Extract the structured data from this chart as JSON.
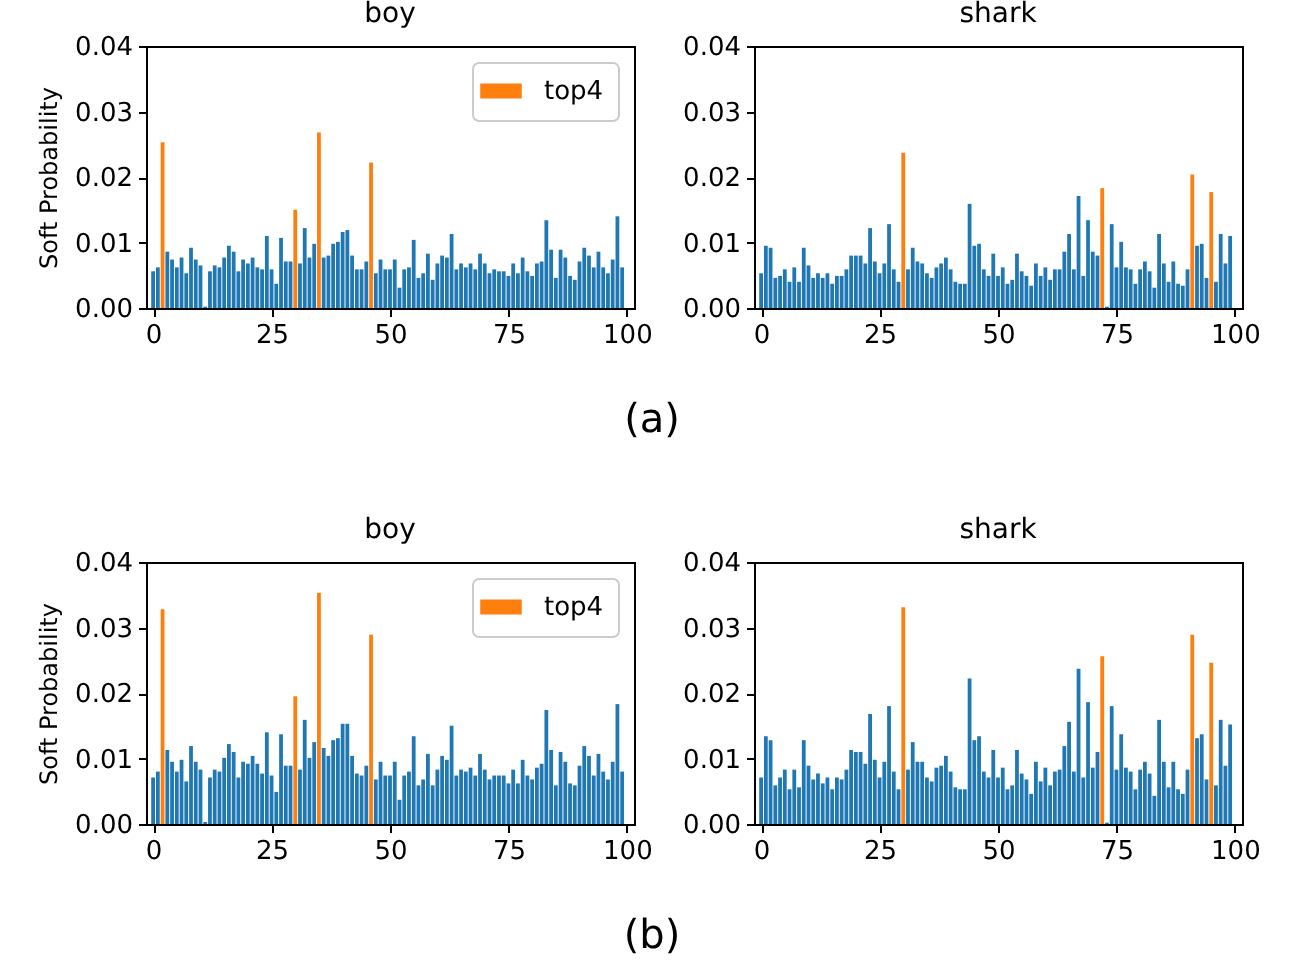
{
  "chart_data": [
    {
      "type": "bar",
      "title": "boy",
      "ylabel": "Soft Probability",
      "legend": "top right",
      "annotations": [
        "(a)"
      ],
      "x": [
        0,
        1,
        2,
        3,
        4,
        5,
        6,
        7,
        8,
        9,
        10,
        11,
        12,
        13,
        14,
        15,
        16,
        17,
        18,
        19,
        20,
        21,
        22,
        23,
        24,
        25,
        26,
        27,
        28,
        29,
        30,
        31,
        32,
        33,
        34,
        35,
        36,
        37,
        38,
        39,
        40,
        41,
        42,
        43,
        44,
        45,
        46,
        47,
        48,
        49,
        50,
        51,
        52,
        53,
        54,
        55,
        56,
        57,
        58,
        59,
        60,
        61,
        62,
        63,
        64,
        65,
        66,
        67,
        68,
        69,
        70,
        71,
        72,
        73,
        74,
        75,
        76,
        77,
        78,
        79,
        80,
        81,
        82,
        83,
        84,
        85,
        86,
        87,
        88,
        89,
        90,
        91,
        92,
        93,
        94,
        95,
        96,
        97,
        98,
        99
      ],
      "xlim": [
        -1.5,
        101.5
      ],
      "xticks": [
        0,
        25,
        50,
        75,
        100
      ],
      "ylim": [
        0,
        0.04
      ],
      "yticks": [
        {
          "value": 0,
          "label": "0.00"
        },
        {
          "value": 0.01,
          "label": "0.01"
        },
        {
          "value": 0.02,
          "label": "0.02"
        },
        {
          "value": 0.03,
          "label": "0.03"
        },
        {
          "value": 0.04,
          "label": "0.04"
        }
      ],
      "series": [
        {
          "color": "#1f77b4",
          "values": [
            0.0056,
            0.0062,
            null,
            0.0086,
            0.0074,
            0.0062,
            0.0077,
            0.0053,
            0.0092,
            0.0074,
            0.0065,
            0.0002,
            0.0056,
            0.0065,
            0.0062,
            0.0077,
            0.0095,
            0.0086,
            0.0056,
            0.0074,
            0.0068,
            0.0077,
            0.0062,
            0.0059,
            0.011,
            0.0059,
            0.0037,
            0.0107,
            0.0071,
            0.0071,
            null,
            0.0068,
            0.0122,
            0.0077,
            0.0098,
            null,
            0.0077,
            0.008,
            0.0098,
            0.0101,
            0.0116,
            0.0119,
            0.008,
            0.0059,
            0.0059,
            0.0071,
            null,
            0.0053,
            0.0074,
            0.0059,
            0.0059,
            0.0074,
            0.0031,
            0.0059,
            0.0062,
            0.0104,
            0.0046,
            0.0053,
            0.0083,
            0.0043,
            0.0068,
            0.008,
            0.0077,
            0.0113,
            0.0059,
            0.0068,
            0.0062,
            0.0068,
            0.0059,
            0.0083,
            0.0068,
            0.0053,
            0.0059,
            0.0056,
            0.0056,
            0.0049,
            0.0068,
            0.0053,
            0.0077,
            0.0056,
            0.0049,
            0.0068,
            0.0071,
            0.0134,
            0.0089,
            0.0046,
            0.0089,
            0.0077,
            0.0049,
            0.0043,
            0.0071,
            0.0092,
            0.008,
            0.0062,
            0.0086,
            0.0062,
            0.0053,
            0.0074,
            0.014,
            0.0062
          ]
        },
        {
          "name": "top4",
          "color": "#ff7f0e",
          "values": [
            null,
            null,
            0.0253,
            null,
            null,
            null,
            null,
            null,
            null,
            null,
            null,
            null,
            null,
            null,
            null,
            null,
            null,
            null,
            null,
            null,
            null,
            null,
            null,
            null,
            null,
            null,
            null,
            null,
            null,
            null,
            0.015,
            null,
            null,
            null,
            null,
            0.0268,
            null,
            null,
            null,
            null,
            null,
            null,
            null,
            null,
            null,
            null,
            0.0222,
            null,
            null,
            null,
            null,
            null,
            null,
            null,
            null,
            null,
            null,
            null,
            null,
            null,
            null,
            null,
            null,
            null,
            null,
            null,
            null,
            null,
            null,
            null,
            null,
            null,
            null,
            null,
            null,
            null,
            null,
            null,
            null,
            null,
            null,
            null,
            null,
            null,
            null,
            null,
            null,
            null,
            null,
            null,
            null,
            null,
            null,
            null,
            null,
            null,
            null,
            null,
            null,
            null
          ]
        }
      ]
    },
    {
      "type": "bar",
      "title": "shark",
      "x": [
        0,
        1,
        2,
        3,
        4,
        5,
        6,
        7,
        8,
        9,
        10,
        11,
        12,
        13,
        14,
        15,
        16,
        17,
        18,
        19,
        20,
        21,
        22,
        23,
        24,
        25,
        26,
        27,
        28,
        29,
        30,
        31,
        32,
        33,
        34,
        35,
        36,
        37,
        38,
        39,
        40,
        41,
        42,
        43,
        44,
        45,
        46,
        47,
        48,
        49,
        50,
        51,
        52,
        53,
        54,
        55,
        56,
        57,
        58,
        59,
        60,
        61,
        62,
        63,
        64,
        65,
        66,
        67,
        68,
        69,
        70,
        71,
        72,
        73,
        74,
        75,
        76,
        77,
        78,
        79,
        80,
        81,
        82,
        83,
        84,
        85,
        86,
        87,
        88,
        89,
        90,
        91,
        92,
        93,
        94,
        95,
        96,
        97,
        98,
        99
      ],
      "xlim": [
        -1.5,
        101.5
      ],
      "xticks": [
        0,
        25,
        50,
        75,
        100
      ],
      "ylim": [
        0,
        0.04
      ],
      "yticks": [
        {
          "value": 0,
          "label": "0.00"
        },
        {
          "value": 0.01,
          "label": "0.01"
        },
        {
          "value": 0.02,
          "label": "0.02"
        },
        {
          "value": 0.03,
          "label": "0.03"
        },
        {
          "value": 0.04,
          "label": "0.04"
        }
      ],
      "series": [
        {
          "color": "#1f77b4",
          "values": [
            0.0053,
            0.0095,
            0.0092,
            0.0046,
            0.0049,
            0.0059,
            0.004,
            0.0062,
            0.004,
            0.0092,
            0.0065,
            0.0046,
            0.0053,
            0.0046,
            0.0053,
            0.0037,
            0.0049,
            0.0049,
            0.0059,
            0.008,
            0.008,
            0.008,
            0.0068,
            0.0122,
            0.0071,
            0.0053,
            0.0068,
            0.0128,
            0.0059,
            0.004,
            null,
            0.0059,
            0.0092,
            0.0071,
            0.0068,
            0.0053,
            0.0046,
            0.0062,
            0.0068,
            0.0077,
            0.0059,
            0.004,
            0.0037,
            0.0037,
            0.0159,
            0.0095,
            0.0098,
            0.0059,
            0.0049,
            0.0083,
            0.0049,
            0.0062,
            0.0037,
            0.0043,
            0.0083,
            0.0056,
            0.0049,
            0.0034,
            0.0068,
            0.0049,
            0.0062,
            0.0043,
            0.0059,
            0.0059,
            0.0086,
            0.0113,
            0.0059,
            0.0171,
            0.0049,
            0.0134,
            0.0086,
            0.008,
            null,
            0.0002,
            0.0128,
            0.0062,
            0.0101,
            0.0062,
            0.0059,
            0.0037,
            0.0059,
            0.0071,
            0.0056,
            0.0031,
            0.0113,
            0.0068,
            0.004,
            0.0071,
            0.0037,
            0.0034,
            0.0059,
            null,
            0.0095,
            0.0098,
            0.0046,
            null,
            0.004,
            0.0113,
            0.0068,
            0.011
          ]
        },
        {
          "color": "#ff7f0e",
          "values": [
            null,
            null,
            null,
            null,
            null,
            null,
            null,
            null,
            null,
            null,
            null,
            null,
            null,
            null,
            null,
            null,
            null,
            null,
            null,
            null,
            null,
            null,
            null,
            null,
            null,
            null,
            null,
            null,
            null,
            null,
            0.0237,
            null,
            null,
            null,
            null,
            null,
            null,
            null,
            null,
            null,
            null,
            null,
            null,
            null,
            null,
            null,
            null,
            null,
            null,
            null,
            null,
            null,
            null,
            null,
            null,
            null,
            null,
            null,
            null,
            null,
            null,
            null,
            null,
            null,
            null,
            null,
            null,
            null,
            null,
            null,
            null,
            null,
            0.0183,
            null,
            null,
            null,
            null,
            null,
            null,
            null,
            null,
            null,
            null,
            null,
            null,
            null,
            null,
            null,
            null,
            null,
            null,
            0.0204,
            null,
            null,
            null,
            0.0177,
            null,
            null,
            null,
            null
          ]
        }
      ]
    },
    {
      "type": "bar",
      "title": "boy",
      "ylabel": "Soft Probability",
      "legend": "top right",
      "annotations": [
        "(b)"
      ],
      "x": [
        0,
        1,
        2,
        3,
        4,
        5,
        6,
        7,
        8,
        9,
        10,
        11,
        12,
        13,
        14,
        15,
        16,
        17,
        18,
        19,
        20,
        21,
        22,
        23,
        24,
        25,
        26,
        27,
        28,
        29,
        30,
        31,
        32,
        33,
        34,
        35,
        36,
        37,
        38,
        39,
        40,
        41,
        42,
        43,
        44,
        45,
        46,
        47,
        48,
        49,
        50,
        51,
        52,
        53,
        54,
        55,
        56,
        57,
        58,
        59,
        60,
        61,
        62,
        63,
        64,
        65,
        66,
        67,
        68,
        69,
        70,
        71,
        72,
        73,
        74,
        75,
        76,
        77,
        78,
        79,
        80,
        81,
        82,
        83,
        84,
        85,
        86,
        87,
        88,
        89,
        90,
        91,
        92,
        93,
        94,
        95,
        96,
        97,
        98,
        99
      ],
      "xlim": [
        -1.5,
        101.5
      ],
      "xticks": [
        0,
        25,
        50,
        75,
        100
      ],
      "ylim": [
        0,
        0.04
      ],
      "yticks": [
        {
          "value": 0,
          "label": "0.00"
        },
        {
          "value": 0.01,
          "label": "0.01"
        },
        {
          "value": 0.02,
          "label": "0.02"
        },
        {
          "value": 0.03,
          "label": "0.03"
        },
        {
          "value": 0.04,
          "label": "0.04"
        }
      ],
      "series": [
        {
          "color": "#1f77b4",
          "values": [
            0.0071,
            0.008,
            null,
            0.0113,
            0.0095,
            0.008,
            0.0098,
            0.0065,
            0.0119,
            0.0095,
            0.0083,
            0.0003,
            0.0071,
            0.0083,
            0.008,
            0.0101,
            0.0122,
            0.011,
            0.0071,
            0.0095,
            0.0092,
            0.0104,
            0.0092,
            0.0077,
            0.014,
            0.0074,
            0.0049,
            0.0137,
            0.0089,
            0.0089,
            null,
            0.0083,
            0.0159,
            0.0101,
            0.0125,
            null,
            0.0116,
            0.0104,
            0.0128,
            0.0131,
            0.0153,
            0.0153,
            0.0104,
            0.0077,
            0.0074,
            0.0089,
            null,
            0.0068,
            0.0095,
            0.0074,
            0.0074,
            0.0095,
            0.0037,
            0.0074,
            0.008,
            0.0134,
            0.0059,
            0.0068,
            0.0107,
            0.0059,
            0.0083,
            0.0104,
            0.0098,
            0.015,
            0.0074,
            0.0083,
            0.008,
            0.0086,
            0.0074,
            0.0107,
            0.0083,
            0.0068,
            0.0074,
            0.0074,
            0.0074,
            0.0062,
            0.0083,
            0.0062,
            0.0098,
            0.0074,
            0.0068,
            0.0086,
            0.0092,
            0.0174,
            0.0113,
            0.0059,
            0.011,
            0.0095,
            0.0062,
            0.0059,
            0.0089,
            0.0119,
            0.0104,
            0.0074,
            0.0107,
            0.008,
            0.0068,
            0.0095,
            0.0183,
            0.008
          ]
        },
        {
          "name": "top4",
          "color": "#ff7f0e",
          "values": [
            null,
            null,
            0.0328,
            null,
            null,
            null,
            null,
            null,
            null,
            null,
            null,
            null,
            null,
            null,
            null,
            null,
            null,
            null,
            null,
            null,
            null,
            null,
            null,
            null,
            null,
            null,
            null,
            null,
            null,
            null,
            0.0195,
            null,
            null,
            null,
            null,
            0.0353,
            null,
            null,
            null,
            null,
            null,
            null,
            null,
            null,
            null,
            null,
            0.0289,
            null,
            null,
            null,
            null,
            null,
            null,
            null,
            null,
            null,
            null,
            null,
            null,
            null,
            null,
            null,
            null,
            null,
            null,
            null,
            null,
            null,
            null,
            null,
            null,
            null,
            null,
            null,
            null,
            null,
            null,
            null,
            null,
            null,
            null,
            null,
            null,
            null,
            null,
            null,
            null,
            null,
            null,
            null,
            null,
            null,
            null,
            null,
            null,
            null,
            null,
            null,
            null,
            null
          ]
        }
      ]
    },
    {
      "type": "bar",
      "title": "shark",
      "x": [
        0,
        1,
        2,
        3,
        4,
        5,
        6,
        7,
        8,
        9,
        10,
        11,
        12,
        13,
        14,
        15,
        16,
        17,
        18,
        19,
        20,
        21,
        22,
        23,
        24,
        25,
        26,
        27,
        28,
        29,
        30,
        31,
        32,
        33,
        34,
        35,
        36,
        37,
        38,
        39,
        40,
        41,
        42,
        43,
        44,
        45,
        46,
        47,
        48,
        49,
        50,
        51,
        52,
        53,
        54,
        55,
        56,
        57,
        58,
        59,
        60,
        61,
        62,
        63,
        64,
        65,
        66,
        67,
        68,
        69,
        70,
        71,
        72,
        73,
        74,
        75,
        76,
        77,
        78,
        79,
        80,
        81,
        82,
        83,
        84,
        85,
        86,
        87,
        88,
        89,
        90,
        91,
        92,
        93,
        94,
        95,
        96,
        97,
        98,
        99
      ],
      "xlim": [
        -1.5,
        101.5
      ],
      "xticks": [
        0,
        25,
        50,
        75,
        100
      ],
      "ylim": [
        0,
        0.04
      ],
      "yticks": [
        {
          "value": 0,
          "label": "0.00"
        },
        {
          "value": 0.01,
          "label": "0.01"
        },
        {
          "value": 0.02,
          "label": "0.02"
        },
        {
          "value": 0.03,
          "label": "0.03"
        },
        {
          "value": 0.04,
          "label": "0.04"
        }
      ],
      "series": [
        {
          "color": "#1f77b4",
          "values": [
            0.0071,
            0.0134,
            0.0128,
            0.0059,
            0.0071,
            0.0083,
            0.0053,
            0.0083,
            0.0056,
            0.0128,
            0.0089,
            0.0068,
            0.0077,
            0.0062,
            0.0071,
            0.0053,
            0.0071,
            0.0068,
            0.0083,
            0.0113,
            0.011,
            0.011,
            0.0092,
            0.0168,
            0.0098,
            0.0071,
            0.0095,
            0.018,
            0.008,
            0.0053,
            null,
            0.0083,
            0.0125,
            0.0095,
            0.0095,
            0.0071,
            0.0065,
            0.0086,
            0.0089,
            0.0104,
            0.008,
            0.0056,
            0.0053,
            0.0053,
            0.0222,
            0.0128,
            0.0134,
            0.008,
            0.0071,
            0.0113,
            0.0071,
            0.0086,
            0.0053,
            0.0059,
            0.0113,
            0.0077,
            0.0068,
            0.0046,
            0.0095,
            0.0065,
            0.0086,
            0.0059,
            0.008,
            0.0083,
            0.0119,
            0.0156,
            0.008,
            0.0237,
            0.0071,
            0.0186,
            0.0086,
            0.011,
            null,
            0.0002,
            0.018,
            0.0083,
            0.0137,
            0.0086,
            0.008,
            0.0053,
            0.0083,
            0.0095,
            0.0077,
            0.0043,
            0.0159,
            0.0095,
            0.0056,
            0.0095,
            0.0053,
            0.0046,
            0.0083,
            null,
            0.0131,
            0.0137,
            0.0068,
            null,
            0.0059,
            0.0159,
            0.0089,
            0.0152
          ]
        },
        {
          "color": "#ff7f0e",
          "values": [
            null,
            null,
            null,
            null,
            null,
            null,
            null,
            null,
            null,
            null,
            null,
            null,
            null,
            null,
            null,
            null,
            null,
            null,
            null,
            null,
            null,
            null,
            null,
            null,
            null,
            null,
            null,
            null,
            null,
            null,
            0.0331,
            null,
            null,
            null,
            null,
            null,
            null,
            null,
            null,
            null,
            null,
            null,
            null,
            null,
            null,
            null,
            null,
            null,
            null,
            null,
            null,
            null,
            null,
            null,
            null,
            null,
            null,
            null,
            null,
            null,
            null,
            null,
            null,
            null,
            null,
            null,
            null,
            null,
            null,
            null,
            null,
            null,
            0.0256,
            null,
            null,
            null,
            null,
            null,
            null,
            null,
            null,
            null,
            null,
            null,
            null,
            null,
            null,
            null,
            null,
            null,
            null,
            0.0289,
            null,
            null,
            null,
            0.0246,
            null,
            null,
            null,
            null
          ]
        }
      ]
    }
  ]
}
